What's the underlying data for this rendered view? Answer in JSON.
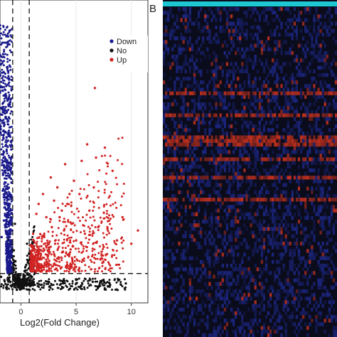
{
  "panel_b_label": "B",
  "chart_data": [
    {
      "type": "scatter",
      "chart": "volcano",
      "xlabel": "Log2(Fold Change)",
      "ylabel": "",
      "x_ticks": [
        "0",
        "5",
        "10"
      ],
      "x_tick_values": [
        0,
        5,
        10
      ],
      "xlim": [
        -1.9,
        11.5
      ],
      "ylim": [
        0,
        8.5
      ],
      "fold_change_threshold": [
        -0.75,
        0.75
      ],
      "significance_threshold": 0.5,
      "legend": {
        "placement": "top-right",
        "entries": [
          {
            "label": "Down",
            "color": "#1a1a8c"
          },
          {
            "label": "No",
            "color": "#111111"
          },
          {
            "label": "Up",
            "color": "#d22323"
          }
        ]
      },
      "series": [
        {
          "name": "Down",
          "color": "#1a1a8c",
          "points": [
            [
              -1.0,
              2.6
            ],
            [
              -0.9,
              2.2
            ],
            [
              -1.2,
              3.1
            ],
            [
              -0.8,
              1.8
            ],
            [
              -1.5,
              3.6
            ],
            [
              -1.1,
              2.4
            ],
            [
              -0.95,
              1.5
            ],
            [
              -1.3,
              4.2
            ],
            [
              -1.6,
              4.8
            ],
            [
              -1.8,
              5.3
            ],
            [
              -1.4,
              5.9
            ],
            [
              -1.7,
              6.4
            ],
            [
              -0.9,
              1.2
            ],
            [
              -1.0,
              0.9
            ],
            [
              -1.25,
              2.9
            ],
            [
              -1.05,
              3.4
            ],
            [
              -1.55,
              2.1
            ],
            [
              -1.75,
              1.6
            ],
            [
              -0.85,
              2.8
            ],
            [
              -1.15,
              5.1
            ],
            [
              -1.35,
              1.1
            ],
            [
              -1.65,
              3.0
            ],
            [
              -1.45,
              2.5
            ],
            [
              -1.9,
              7.1
            ]
          ]
        },
        {
          "name": "No",
          "color": "#111111",
          "points": [
            [
              -0.5,
              0.25
            ],
            [
              -0.3,
              0.15
            ],
            [
              -0.1,
              0.05
            ],
            [
              0.1,
              0.06
            ],
            [
              0.3,
              0.14
            ],
            [
              0.5,
              0.22
            ],
            [
              -0.6,
              0.4
            ],
            [
              0.6,
              0.35
            ],
            [
              -0.2,
              0.1
            ],
            [
              0.2,
              0.09
            ],
            [
              0.05,
              0.3
            ],
            [
              -0.05,
              0.45
            ],
            [
              -0.4,
              0.2
            ],
            [
              0.4,
              0.2
            ],
            [
              0.7,
              0.3
            ],
            [
              -0.7,
              0.45
            ],
            [
              -0.65,
              1.2
            ],
            [
              -0.55,
              2.0
            ],
            [
              0.65,
              0.9
            ],
            [
              0.55,
              1.4
            ],
            [
              -1.2,
              0.35
            ],
            [
              -1.5,
              0.3
            ],
            [
              1.5,
              0.2
            ],
            [
              2.5,
              0.25
            ],
            [
              3.5,
              0.3
            ],
            [
              5.0,
              0.2
            ],
            [
              6.5,
              0.25
            ],
            [
              8.0,
              0.22
            ],
            [
              9.5,
              0.2
            ],
            [
              1.0,
              0.4
            ],
            [
              -1.8,
              0.4
            ]
          ]
        },
        {
          "name": "Up",
          "color": "#d22323",
          "points": [
            [
              1.2,
              0.9
            ],
            [
              1.5,
              1.3
            ],
            [
              1.8,
              1.1
            ],
            [
              2.1,
              1.6
            ],
            [
              2.5,
              1.2
            ],
            [
              2.8,
              1.9
            ],
            [
              3.1,
              1.4
            ],
            [
              3.5,
              2.2
            ],
            [
              3.9,
              1.8
            ],
            [
              4.2,
              2.6
            ],
            [
              4.6,
              2.0
            ],
            [
              5.0,
              1.5
            ],
            [
              5.3,
              2.9
            ],
            [
              5.8,
              1.7
            ],
            [
              6.2,
              2.4
            ],
            [
              6.6,
              3.1
            ],
            [
              7.0,
              1.9
            ],
            [
              7.5,
              1.3
            ],
            [
              8.0,
              2.1
            ],
            [
              8.7,
              1.5
            ],
            [
              9.2,
              2.2
            ],
            [
              10.0,
              1.4
            ],
            [
              10.6,
              1.8
            ],
            [
              1.4,
              2.3
            ],
            [
              2.0,
              2.9
            ],
            [
              2.7,
              3.4
            ],
            [
              3.3,
              3.1
            ],
            [
              4.0,
              3.8
            ],
            [
              4.8,
              3.3
            ],
            [
              5.5,
              3.9
            ],
            [
              6.0,
              4.4
            ],
            [
              6.8,
              4.0
            ],
            [
              7.6,
              4.3
            ],
            [
              8.3,
              3.6
            ],
            [
              1.1,
              1.7
            ],
            [
              1.6,
              2.6
            ],
            [
              2.3,
              2.2
            ],
            [
              3.0,
              2.7
            ],
            [
              3.7,
              2.4
            ],
            [
              4.4,
              2.9
            ],
            [
              6.7,
              6.1
            ]
          ]
        }
      ]
    },
    {
      "type": "heatmap",
      "chart": "expression-heatmap",
      "xlabel": "",
      "ylabel": "",
      "annotation_bar_color": "#1ec8d2",
      "low_color": "#1f2a8f",
      "mid_color": "#0d0d1a",
      "high_color": "#c8321e",
      "rows": 90,
      "columns": 80,
      "highlight_rows": [
        23,
        29,
        35,
        36,
        37,
        41,
        46,
        52
      ]
    }
  ]
}
